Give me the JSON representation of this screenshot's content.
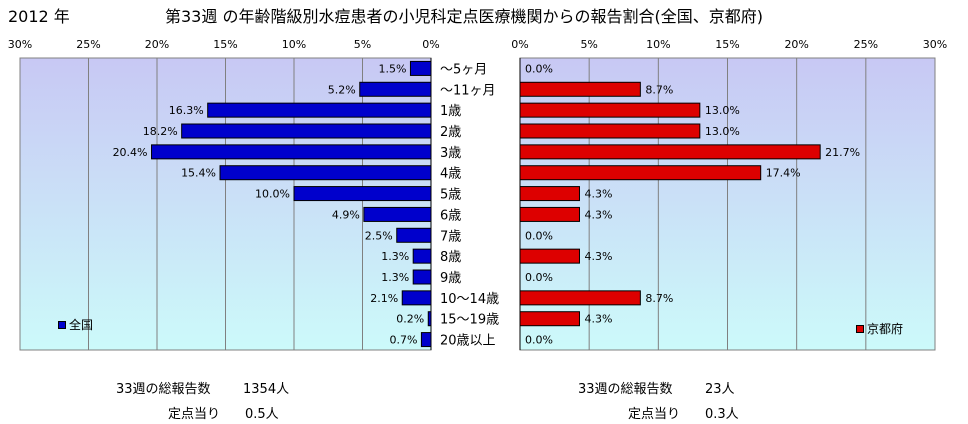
{
  "header": {
    "year": "2012 年",
    "title": "第33週 の年齢階級別水痘患者の小児科定点医療機関からの報告割合(全国、京都府)"
  },
  "colors": {
    "national": "#0000cc",
    "kyoto": "#dd0000",
    "plot_top": "#c8c8f4",
    "plot_bottom": "#ccfafa"
  },
  "chart_data": {
    "type": "bar",
    "orientation": "horizontal",
    "categories": [
      "〜5ヶ月",
      "〜11ヶ月",
      "1歳",
      "2歳",
      "3歳",
      "4歳",
      "5歳",
      "6歳",
      "7歳",
      "8歳",
      "9歳",
      "10〜14歳",
      "15〜19歳",
      "20歳以上"
    ],
    "xlim": [
      0,
      30
    ],
    "xticks": [
      "0%",
      "5%",
      "10%",
      "15%",
      "20%",
      "25%",
      "30%"
    ],
    "tick_values": [
      0,
      5,
      10,
      15,
      20,
      25,
      30
    ],
    "grid": true,
    "series": [
      {
        "name": "全国",
        "values": [
          1.5,
          5.2,
          16.3,
          18.2,
          20.4,
          15.4,
          10.0,
          4.9,
          2.5,
          1.3,
          1.3,
          2.1,
          0.2,
          0.7
        ],
        "labels": [
          "1.5%",
          "5.2%",
          "16.3%",
          "18.2%",
          "20.4%",
          "15.4%",
          "10.0%",
          "4.9%",
          "2.5%",
          "1.3%",
          "1.3%",
          "2.1%",
          "0.2%",
          "0.7%"
        ]
      },
      {
        "name": "京都府",
        "values": [
          0.0,
          8.7,
          13.0,
          13.0,
          21.7,
          17.4,
          4.3,
          4.3,
          0.0,
          4.3,
          0.0,
          8.7,
          4.3,
          0.0
        ],
        "labels": [
          "0.0%",
          "8.7%",
          "13.0%",
          "13.0%",
          "21.7%",
          "17.4%",
          "4.3%",
          "4.3%",
          "0.0%",
          "4.3%",
          "0.0%",
          "8.7%",
          "4.3%",
          "0.0%"
        ]
      }
    ]
  },
  "footer": {
    "national": {
      "total_label": "33週の総報告数",
      "total_value": "1354人",
      "per_label": "定点当り",
      "per_value": "0.5人"
    },
    "kyoto": {
      "total_label": "33週の総報告数",
      "total_value": "23人",
      "per_label": "定点当り",
      "per_value": "0.3人"
    }
  }
}
